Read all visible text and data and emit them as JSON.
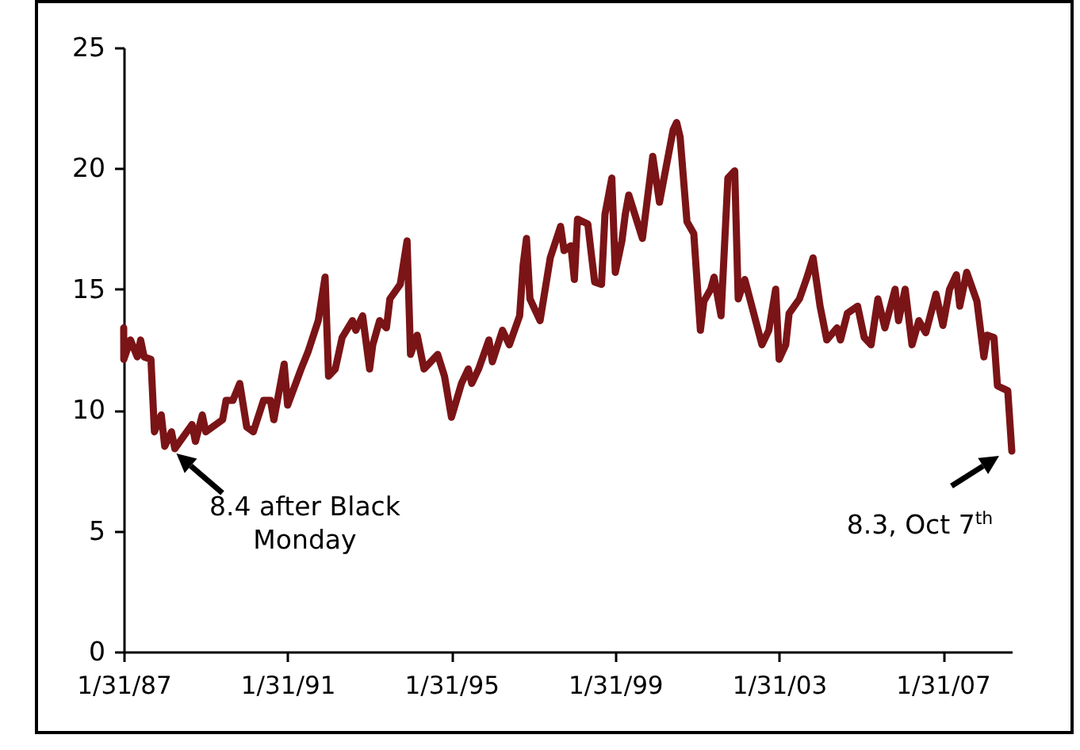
{
  "chart_data": {
    "type": "line",
    "x": [
      "1987-01-31",
      "1987-02",
      "1987-04",
      "1987-06",
      "1987-07",
      "1987-08",
      "1987-10",
      "1987-11",
      "1988-01",
      "1988-02",
      "1988-04",
      "1988-05",
      "1988-08",
      "1988-10",
      "1988-11",
      "1989-01",
      "1989-02",
      "1989-07",
      "1989-08",
      "1989-10",
      "1989-12",
      "1990-02",
      "1990-04",
      "1990-07",
      "1990-09",
      "1990-10",
      "1991-01",
      "1991-02",
      "1991-06",
      "1991-08",
      "1991-11",
      "1992-01",
      "1992-02",
      "1992-04",
      "1992-06",
      "1992-09",
      "1992-10",
      "1992-12",
      "1993-02",
      "1993-03",
      "1993-05",
      "1993-07",
      "1993-08",
      "1993-11",
      "1994-01",
      "1994-02",
      "1994-04",
      "1994-06",
      "1994-10",
      "1994-12",
      "1995-02",
      "1995-05",
      "1995-07",
      "1995-08",
      "1995-10",
      "1996-01",
      "1996-02",
      "1996-05",
      "1996-07",
      "1996-10",
      "1996-11",
      "1996-12",
      "1997-01",
      "1997-04",
      "1997-07",
      "1997-10",
      "1997-11",
      "1998-01",
      "1998-02",
      "1998-03",
      "1998-06",
      "1998-07",
      "1998-08",
      "1998-10",
      "1998-11",
      "1999-01",
      "1999-02",
      "1999-04",
      "1999-05",
      "1999-06",
      "1999-08",
      "1999-10",
      "2000-01",
      "2000-03",
      "2000-07",
      "2000-08",
      "2000-09",
      "2000-11",
      "2001-01",
      "2001-03",
      "2001-04",
      "2001-06",
      "2001-07",
      "2001-09",
      "2001-11",
      "2002-01",
      "2002-02",
      "2002-04",
      "2002-09",
      "2002-11",
      "2003-01",
      "2003-02",
      "2003-04",
      "2003-05",
      "2003-08",
      "2003-10",
      "2003-12",
      "2004-02",
      "2004-04",
      "2004-07",
      "2004-08",
      "2004-10",
      "2005-01",
      "2005-03",
      "2005-05",
      "2005-07",
      "2005-09",
      "2005-12",
      "2006-01",
      "2006-03",
      "2006-05",
      "2006-07",
      "2006-09",
      "2006-12",
      "2007-02",
      "2007-04",
      "2007-06",
      "2007-07",
      "2007-09",
      "2007-12",
      "2008-02",
      "2008-03",
      "2008-05",
      "2008-06",
      "2008-09",
      "2008-10-07"
    ],
    "series": [
      {
        "color": "#7b1416",
        "values": [
          13.4,
          12.1,
          12.9,
          12.2,
          12.9,
          12.2,
          12.1,
          9.1,
          9.8,
          8.5,
          9.1,
          8.4,
          9.0,
          9.4,
          8.7,
          9.8,
          9.1,
          9.6,
          10.4,
          10.4,
          11.1,
          9.3,
          9.1,
          10.4,
          10.4,
          9.6,
          11.9,
          10.2,
          11.7,
          12.4,
          13.7,
          15.5,
          11.4,
          11.7,
          13.0,
          13.7,
          13.3,
          13.9,
          11.7,
          12.7,
          13.7,
          13.4,
          14.6,
          15.2,
          17.0,
          12.3,
          13.1,
          11.7,
          12.3,
          11.4,
          9.7,
          11.1,
          11.7,
          11.1,
          11.7,
          12.9,
          12.0,
          13.3,
          12.7,
          13.9,
          16.0,
          17.1,
          14.6,
          13.7,
          16.3,
          17.6,
          16.6,
          16.8,
          15.4,
          17.9,
          17.7,
          16.5,
          15.3,
          15.2,
          18.1,
          19.6,
          15.7,
          17.0,
          18.1,
          18.9,
          18.0,
          17.1,
          20.5,
          18.6,
          21.6,
          21.9,
          21.3,
          17.8,
          17.3,
          13.3,
          14.5,
          15.0,
          15.5,
          13.9,
          19.6,
          19.9,
          14.6,
          15.4,
          12.7,
          13.3,
          15.0,
          12.1,
          12.7,
          14.0,
          14.6,
          15.4,
          16.3,
          14.3,
          12.9,
          13.4,
          12.9,
          14.0,
          14.3,
          13.0,
          12.7,
          14.6,
          13.4,
          15.0,
          13.7,
          15.0,
          12.7,
          13.7,
          13.2,
          14.8,
          13.5,
          15.0,
          15.6,
          14.3,
          15.7,
          14.5,
          12.2,
          13.1,
          13.0,
          11.0,
          10.8,
          8.3
        ]
      }
    ],
    "xlim": [
      "1987-01-31",
      "2008-10-07"
    ],
    "xticks": [
      {
        "value": "1987-01-31",
        "label": "1/31/87"
      },
      {
        "value": "1991-01-31",
        "label": "1/31/91"
      },
      {
        "value": "1995-01-31",
        "label": "1/31/95"
      },
      {
        "value": "1999-01-31",
        "label": "1/31/99"
      },
      {
        "value": "2003-01-31",
        "label": "1/31/03"
      },
      {
        "value": "2007-01-31",
        "label": "1/31/07"
      }
    ],
    "ylim": [
      0,
      25
    ],
    "yticks": [
      0,
      5,
      10,
      15,
      20,
      25
    ],
    "line_style": "solid",
    "annotations": [
      {
        "text": "8.4 after Black Monday",
        "x": "1988-05",
        "y": 8.4
      },
      {
        "text": "8.3, Oct 7$^{th}$",
        "x": "2008-10-07",
        "y": 8.3
      }
    ]
  }
}
